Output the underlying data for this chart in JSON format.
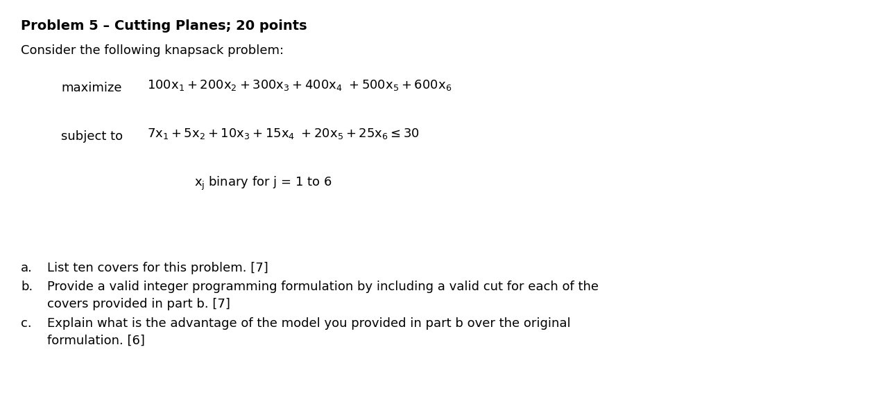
{
  "background_color": "#ffffff",
  "title_text": "Problem 5 – Cutting Planes; 20 points",
  "intro_text": "Consider the following knapsack problem:",
  "fig_width": 12.6,
  "fig_height": 5.76,
  "dpi": 100
}
